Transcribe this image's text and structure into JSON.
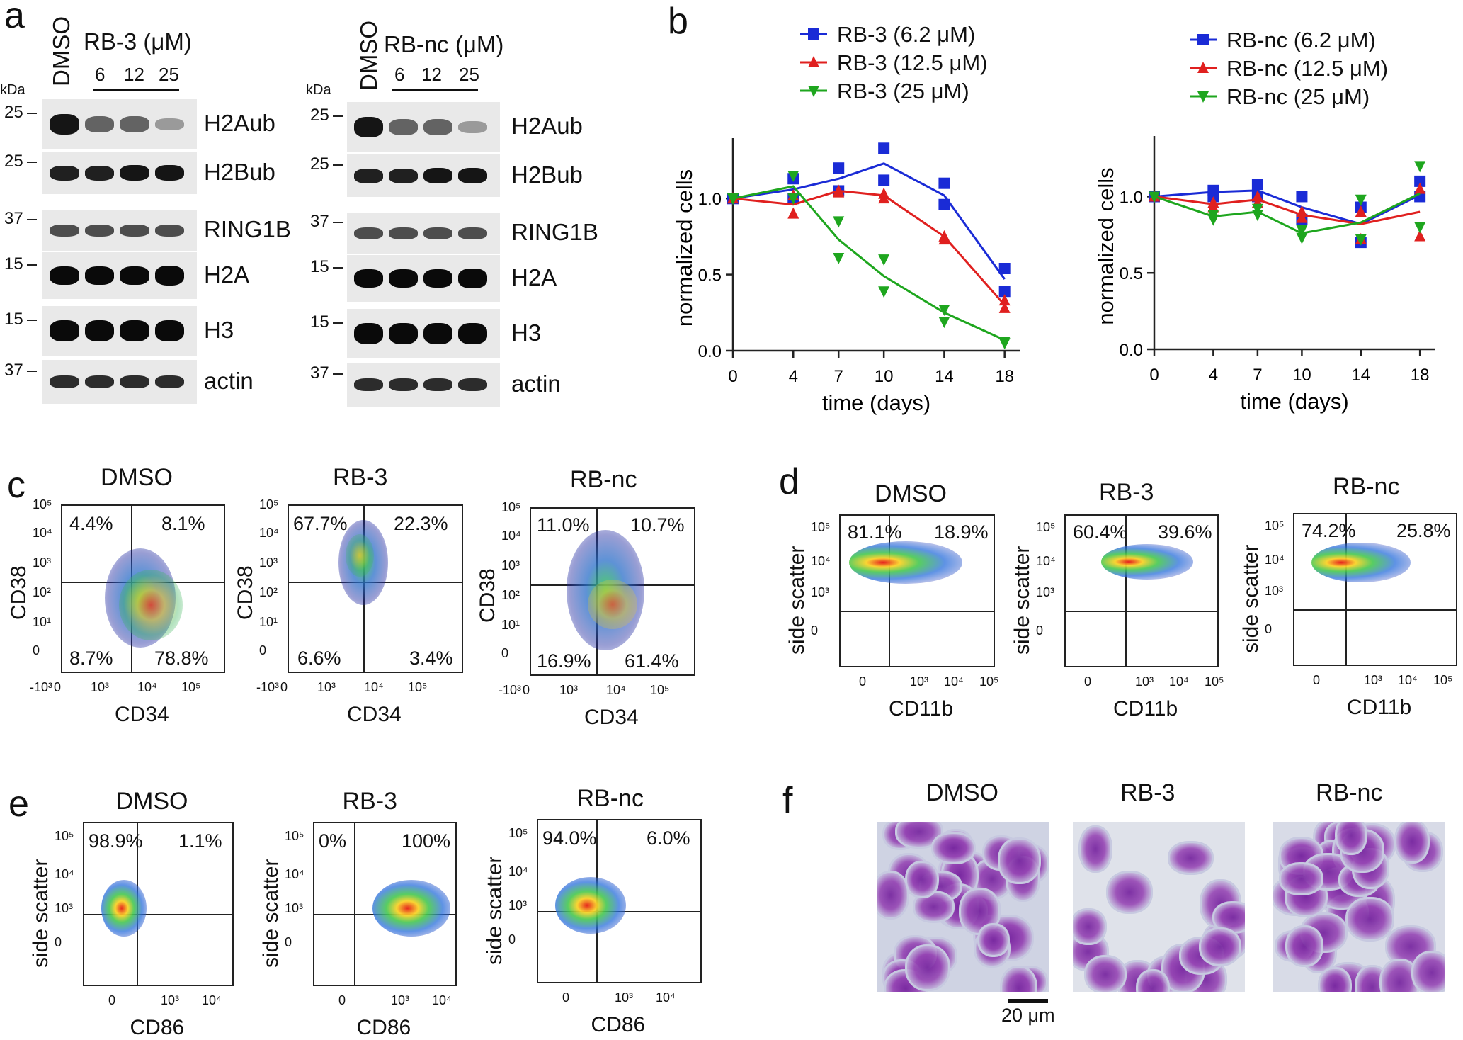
{
  "panels": {
    "a": "a",
    "b": "b",
    "c": "c",
    "d": "d",
    "e": "e",
    "f": "f"
  },
  "western": {
    "left": {
      "lane1": "DMSO",
      "treatment": "RB-3 (μM)",
      "doses": [
        "6",
        "12",
        "25"
      ],
      "kda": "kDa",
      "rows": [
        {
          "label": "H2Aub",
          "mw": "25"
        },
        {
          "label": "H2Bub",
          "mw": "25"
        },
        {
          "label": "RING1B",
          "mw": "37"
        },
        {
          "label": "H2A",
          "mw": "15"
        },
        {
          "label": "H3",
          "mw": "15"
        },
        {
          "label": "actin",
          "mw": "37"
        }
      ]
    },
    "right": {
      "lane1": "DMSO",
      "treatment": "RB-nc (μM)",
      "doses": [
        "6",
        "12",
        "25"
      ],
      "kda": "kDa",
      "rows": [
        {
          "label": "H2Aub",
          "mw": "25"
        },
        {
          "label": "H2Bub",
          "mw": "25"
        },
        {
          "label": "RING1B",
          "mw": "37"
        },
        {
          "label": "H2A",
          "mw": "15"
        },
        {
          "label": "H3",
          "mw": "15"
        },
        {
          "label": "actin",
          "mw": "37"
        }
      ]
    }
  },
  "chart_data": [
    {
      "type": "line",
      "xlabel": "time (days)",
      "ylabel": "normalized cells",
      "x": [
        0,
        4,
        7,
        10,
        14,
        18
      ],
      "xticks": [
        "0",
        "4",
        "7",
        "10",
        "14",
        "18"
      ],
      "yticks": [
        "0.0",
        "0.5",
        "1.0"
      ],
      "ylim": [
        0,
        1.35
      ],
      "legend_position": "top",
      "series": [
        {
          "name": "RB-3 (6.2 μM)",
          "color": "#1a2bd6",
          "marker": "square",
          "values": [
            1.0,
            1.06,
            1.13,
            1.23,
            1.02,
            0.47
          ],
          "replicates": [
            [
              1.0,
              1.0
            ],
            [
              1.13,
              1.0
            ],
            [
              1.2,
              1.05
            ],
            [
              1.33,
              1.12
            ],
            [
              1.1,
              0.96
            ],
            [
              0.54,
              0.39
            ]
          ]
        },
        {
          "name": "RB-3 (12.5 μM)",
          "color": "#e0201f",
          "marker": "triangle-up",
          "values": [
            1.0,
            0.96,
            1.05,
            1.02,
            0.75,
            0.3
          ],
          "replicates": [
            [
              1.0,
              1.0
            ],
            [
              1.02,
              0.9
            ],
            [
              1.05,
              1.04
            ],
            [
              1.03,
              1.0
            ],
            [
              0.75,
              0.73
            ],
            [
              0.33,
              0.28
            ]
          ]
        },
        {
          "name": "RB-3 (25 μM)",
          "color": "#1ea61e",
          "marker": "triangle-down",
          "values": [
            1.0,
            1.08,
            0.73,
            0.49,
            0.25,
            0.07
          ],
          "replicates": [
            [
              1.0,
              1.0
            ],
            [
              1.15,
              1.0
            ],
            [
              0.85,
              0.61
            ],
            [
              0.6,
              0.39
            ],
            [
              0.27,
              0.19
            ],
            [
              0.06,
              0.05
            ]
          ]
        }
      ]
    },
    {
      "type": "line",
      "xlabel": "time (days)",
      "ylabel": "normalized cells",
      "x": [
        0,
        4,
        7,
        10,
        14,
        18
      ],
      "xticks": [
        "0",
        "4",
        "7",
        "10",
        "14",
        "18"
      ],
      "yticks": [
        "0.0",
        "0.5",
        "1.0"
      ],
      "ylim": [
        0,
        1.35
      ],
      "legend_position": "top",
      "series": [
        {
          "name": "RB-nc (6.2 μM)",
          "color": "#1a2bd6",
          "marker": "square",
          "values": [
            1.0,
            1.03,
            1.04,
            0.93,
            0.82,
            1.01
          ],
          "replicates": [
            [
              1.0,
              1.0
            ],
            [
              1.04,
              1.0
            ],
            [
              1.08,
              1.0
            ],
            [
              1.0,
              0.85
            ],
            [
              0.93,
              0.7
            ],
            [
              1.1,
              1.0
            ]
          ]
        },
        {
          "name": "RB-nc (12.5 μM)",
          "color": "#e0201f",
          "marker": "triangle-up",
          "values": [
            1.0,
            0.95,
            0.98,
            0.88,
            0.82,
            0.9
          ],
          "replicates": [
            [
              1.0,
              1.0
            ],
            [
              0.96,
              0.93
            ],
            [
              1.0,
              0.96
            ],
            [
              0.9,
              0.86
            ],
            [
              0.9,
              0.72
            ],
            [
              1.05,
              0.74
            ]
          ]
        },
        {
          "name": "RB-nc (25 μM)",
          "color": "#1ea61e",
          "marker": "triangle-down",
          "values": [
            1.0,
            0.87,
            0.9,
            0.76,
            0.83,
            1.02
          ],
          "replicates": [
            [
              1.0,
              1.0
            ],
            [
              0.88,
              0.85
            ],
            [
              0.92,
              0.88
            ],
            [
              0.78,
              0.73
            ],
            [
              0.98,
              0.72
            ],
            [
              1.2,
              0.8
            ]
          ]
        }
      ]
    }
  ],
  "flow_c": {
    "xlabel": "CD34",
    "ylabel": "CD38",
    "yticks": [
      "10⁵",
      "10⁴",
      "10³",
      "10²",
      "10¹",
      "0"
    ],
    "xticks": [
      "-10³",
      "0",
      "10³",
      "10⁴",
      "10⁵"
    ],
    "plots": [
      {
        "title": "DMSO",
        "q": [
          "4.4%",
          "8.1%",
          "8.7%",
          "78.8%"
        ]
      },
      {
        "title": "RB-3",
        "q": [
          "67.7%",
          "22.3%",
          "6.6%",
          "3.4%"
        ]
      },
      {
        "title": "RB-nc",
        "q": [
          "11.0%",
          "10.7%",
          "16.9%",
          "61.4%"
        ]
      }
    ]
  },
  "flow_d": {
    "xlabel": "CD11b",
    "ylabel": "side scatter",
    "yticks": [
      "10⁵",
      "10⁴",
      "10³",
      "0"
    ],
    "xticks": [
      "0",
      "10³",
      "10⁴",
      "10⁵"
    ],
    "plots": [
      {
        "title": "DMSO",
        "q": [
          "81.1%",
          "18.9%"
        ]
      },
      {
        "title": "RB-3",
        "q": [
          "60.4%",
          "39.6%"
        ]
      },
      {
        "title": "RB-nc",
        "q": [
          "74.2%",
          "25.8%"
        ]
      }
    ]
  },
  "flow_e": {
    "xlabel": "CD86",
    "ylabel": "side scatter",
    "yticks": [
      "10⁵",
      "10⁴",
      "10³",
      "0"
    ],
    "xticks": [
      "0",
      "10³",
      "10⁴"
    ],
    "plots": [
      {
        "title": "DMSO",
        "q": [
          "98.9%",
          "1.1%"
        ]
      },
      {
        "title": "RB-3",
        "q": [
          "0%",
          "100%"
        ]
      },
      {
        "title": "RB-nc",
        "q": [
          "94.0%",
          "6.0%"
        ]
      }
    ]
  },
  "micro": {
    "titles": [
      "DMSO",
      "RB-3",
      "RB-nc"
    ],
    "scalebar": "20 μm"
  }
}
